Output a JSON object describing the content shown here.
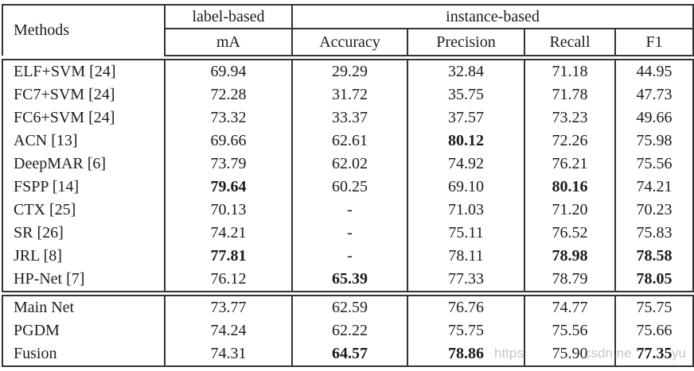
{
  "table": {
    "corner_label": "Methods",
    "groups": [
      {
        "label": "label-based"
      },
      {
        "label": "instance-based"
      }
    ],
    "columns": [
      "mA",
      "Accuracy",
      "Precision",
      "Recall",
      "F1"
    ],
    "sections": [
      {
        "name": "prior-methods",
        "rows": [
          {
            "method": "ELF+SVM [24]",
            "values": [
              "69.94",
              "29.29",
              "32.84",
              "71.18",
              "44.95"
            ]
          },
          {
            "method": "FC7+SVM [24]",
            "values": [
              "72.28",
              "31.72",
              "35.75",
              "71.78",
              "47.73"
            ]
          },
          {
            "method": "FC6+SVM [24]",
            "values": [
              "73.32",
              "33.37",
              "37.57",
              "73.23",
              "49.66"
            ]
          },
          {
            "method": "ACN [13]",
            "values": [
              "69.66",
              "62.61",
              "80.12",
              "72.26",
              "75.98"
            ],
            "bold": [
              false,
              false,
              true,
              false,
              false
            ]
          },
          {
            "method": "DeepMAR [6]",
            "values": [
              "73.79",
              "62.02",
              "74.92",
              "76.21",
              "75.56"
            ]
          },
          {
            "method": "FSPP [14]",
            "values": [
              "79.64",
              "60.25",
              "69.10",
              "80.16",
              "74.21"
            ],
            "bold": [
              true,
              false,
              false,
              true,
              false
            ]
          },
          {
            "method": "CTX [25]",
            "values": [
              "70.13",
              "-",
              "71.03",
              "71.20",
              "70.23"
            ]
          },
          {
            "method": "SR [26]",
            "values": [
              "74.21",
              "-",
              "75.11",
              "76.52",
              "75.83"
            ]
          },
          {
            "method": "JRL [8]",
            "values": [
              "77.81",
              "-",
              "78.11",
              "78.98",
              "78.58"
            ],
            "bold": [
              true,
              false,
              false,
              true,
              true
            ]
          },
          {
            "method": "HP-Net [7]",
            "values": [
              "76.12",
              "65.39",
              "77.33",
              "78.79",
              "78.05"
            ],
            "bold": [
              false,
              true,
              false,
              false,
              true
            ]
          }
        ]
      },
      {
        "name": "proposed-methods",
        "rows": [
          {
            "method": "Main Net",
            "values": [
              "73.77",
              "62.59",
              "76.76",
              "74.77",
              "75.75"
            ]
          },
          {
            "method": "PGDM",
            "values": [
              "74.24",
              "62.22",
              "75.75",
              "75.56",
              "75.66"
            ]
          },
          {
            "method": "Fusion",
            "values": [
              "74.31",
              "64.57",
              "78.86",
              "75.90",
              "77.35"
            ],
            "bold": [
              false,
              true,
              true,
              false,
              true
            ]
          }
        ]
      }
    ]
  },
  "watermark": {
    "fragments": [
      "https",
      "csdn.ne",
      "yu"
    ]
  }
}
